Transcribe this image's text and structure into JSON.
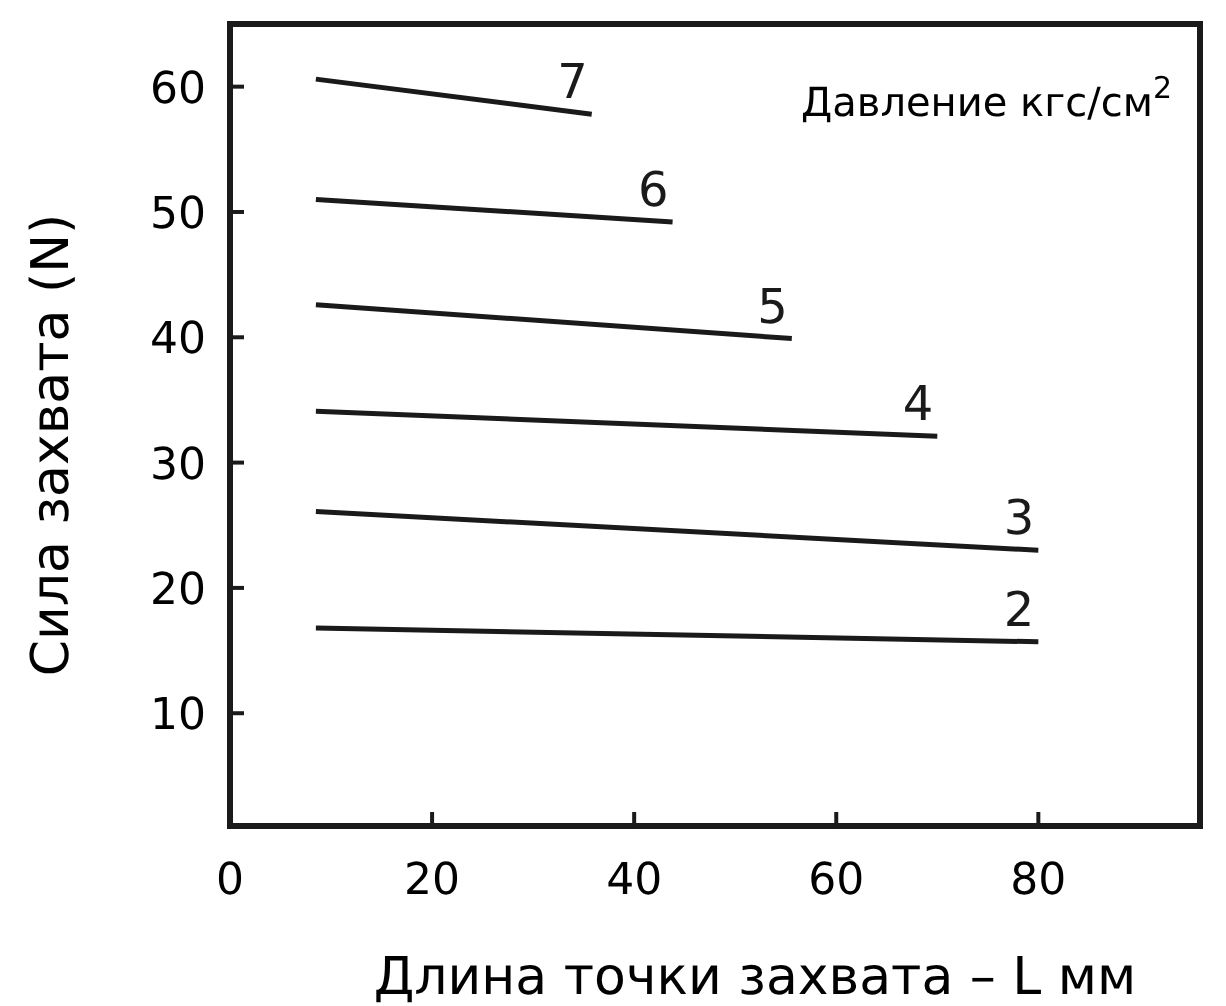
{
  "chart_data": {
    "type": "line",
    "xlabel": "Длина точки захвата – L мм",
    "ylabel": "Сила захвата (N)",
    "legend_title": "Давление кгс/см$^{2}$",
    "xlim": [
      0,
      96
    ],
    "ylim": [
      1,
      65
    ],
    "xticks": [
      0,
      20,
      40,
      60,
      80
    ],
    "yticks": [
      10,
      20,
      30,
      40,
      50,
      60
    ],
    "grid": false,
    "marker": "none",
    "line_style": "solid",
    "series": [
      {
        "name": "7",
        "color": "#1a1a1a",
        "x": [
          8.5,
          35.8
        ],
        "values": [
          60.6,
          57.8
        ]
      },
      {
        "name": "6",
        "color": "#1a1a1a",
        "x": [
          8.5,
          43.8
        ],
        "values": [
          51.0,
          49.2
        ]
      },
      {
        "name": "5",
        "color": "#1a1a1a",
        "x": [
          8.5,
          55.6
        ],
        "values": [
          42.6,
          39.9
        ]
      },
      {
        "name": "4",
        "color": "#1a1a1a",
        "x": [
          8.5,
          70
        ],
        "values": [
          34.1,
          32.1
        ]
      },
      {
        "name": "3",
        "color": "#1a1a1a",
        "x": [
          8.5,
          80
        ],
        "values": [
          26.1,
          23.0
        ]
      },
      {
        "name": "2",
        "color": "#1a1a1a",
        "x": [
          8.5,
          80
        ],
        "values": [
          16.8,
          15.7
        ]
      }
    ]
  }
}
